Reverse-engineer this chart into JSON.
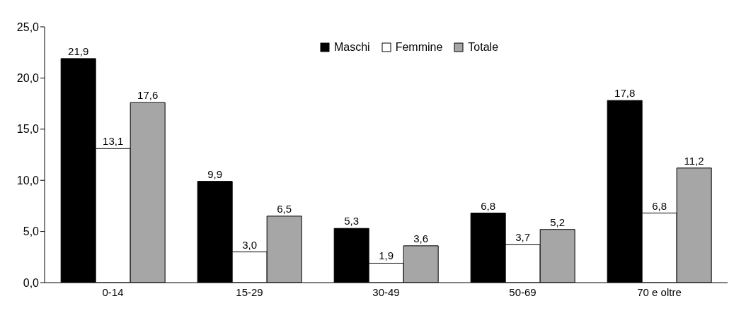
{
  "chart_data": {
    "type": "bar",
    "categories": [
      "0-14",
      "15-29",
      "30-49",
      "50-69",
      "70 e oltre"
    ],
    "series": [
      {
        "name": "Maschi",
        "color": "#000000",
        "values": [
          21.9,
          9.9,
          5.3,
          6.8,
          17.8
        ],
        "value_labels": [
          "21,9",
          "9,9",
          "5,3",
          "6,8",
          "17,8"
        ]
      },
      {
        "name": "Femmine",
        "color": "#ffffff",
        "values": [
          13.1,
          3.0,
          1.9,
          3.7,
          6.8
        ],
        "value_labels": [
          "13,1",
          "3,0",
          "1,9",
          "3,7",
          "6,8"
        ]
      },
      {
        "name": "Totale",
        "color": "#a6a6a6",
        "values": [
          17.6,
          6.5,
          3.6,
          5.2,
          11.2
        ],
        "value_labels": [
          "17,6",
          "6,5",
          "3,6",
          "5,2",
          "11,2"
        ]
      }
    ],
    "ylim": [
      0,
      25
    ],
    "yticks": [
      {
        "value": 0,
        "label": "0,0"
      },
      {
        "value": 5,
        "label": "5,0"
      },
      {
        "value": 10,
        "label": "10,0"
      },
      {
        "value": 15,
        "label": "15,0"
      },
      {
        "value": 20,
        "label": "20,0"
      },
      {
        "value": 25,
        "label": "25,0"
      }
    ],
    "grid": false,
    "legend": "top"
  }
}
